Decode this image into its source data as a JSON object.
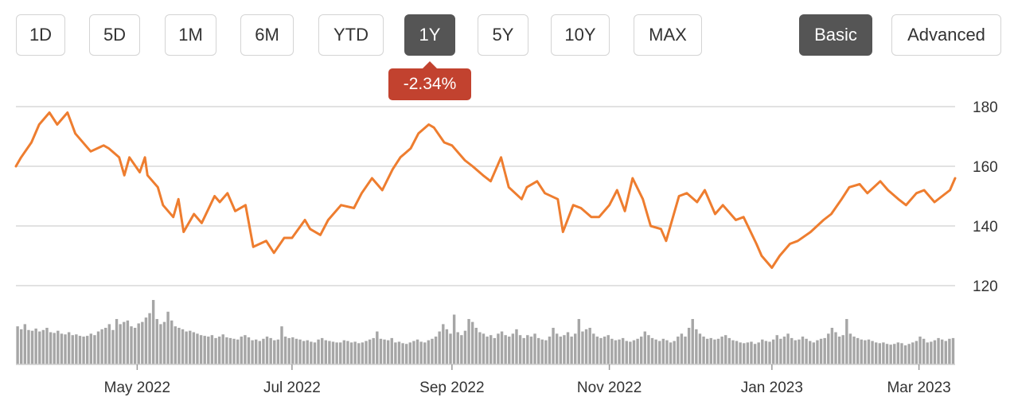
{
  "range_buttons": [
    {
      "label": "1D",
      "active": false
    },
    {
      "label": "5D",
      "active": false
    },
    {
      "label": "1M",
      "active": false
    },
    {
      "label": "6M",
      "active": false
    },
    {
      "label": "YTD",
      "active": false
    },
    {
      "label": "1Y",
      "active": true
    },
    {
      "label": "5Y",
      "active": false
    },
    {
      "label": "10Y",
      "active": false
    },
    {
      "label": "MAX",
      "active": false
    }
  ],
  "mode_buttons": [
    {
      "label": "Basic",
      "active": true
    },
    {
      "label": "Advanced",
      "active": false
    }
  ],
  "change_badge": "-2.34%",
  "colors": {
    "line": "#ee7d2f",
    "volume": "#a6a6a6",
    "grid": "#d9d9d9",
    "badge": "#c2422f",
    "active_button": "#555555"
  },
  "chart_data": {
    "type": "line",
    "y_ticks": [
      "180",
      "160",
      "140",
      "120"
    ],
    "ylim": [
      120,
      180
    ],
    "x_tick_labels": [
      "May 2022",
      "Jul 2022",
      "Sep 2022",
      "Nov 2022",
      "Jan 2023",
      "Mar 2023"
    ],
    "x_tick_dates": [
      "2022-05-02",
      "2022-07-01",
      "2022-09-01",
      "2022-11-01",
      "2023-01-03",
      "2023-03-01"
    ],
    "date_range": [
      "2022-03-16",
      "2023-03-15"
    ],
    "grid": "horizontal",
    "series": [
      {
        "kind": "price",
        "points": [
          [
            "2022-03-16",
            160
          ],
          [
            "2022-03-18",
            163
          ],
          [
            "2022-03-22",
            168
          ],
          [
            "2022-03-25",
            174
          ],
          [
            "2022-03-29",
            178
          ],
          [
            "2022-04-01",
            174
          ],
          [
            "2022-04-05",
            178
          ],
          [
            "2022-04-08",
            171
          ],
          [
            "2022-04-12",
            167
          ],
          [
            "2022-04-14",
            165
          ],
          [
            "2022-04-19",
            167
          ],
          [
            "2022-04-21",
            166
          ],
          [
            "2022-04-25",
            163
          ],
          [
            "2022-04-27",
            157
          ],
          [
            "2022-04-29",
            163
          ],
          [
            "2022-05-03",
            158
          ],
          [
            "2022-05-05",
            163
          ],
          [
            "2022-05-06",
            157
          ],
          [
            "2022-05-10",
            153
          ],
          [
            "2022-05-12",
            147
          ],
          [
            "2022-05-16",
            143
          ],
          [
            "2022-05-18",
            149
          ],
          [
            "2022-05-20",
            138
          ],
          [
            "2022-05-24",
            144
          ],
          [
            "2022-05-27",
            141
          ],
          [
            "2022-06-01",
            150
          ],
          [
            "2022-06-03",
            148
          ],
          [
            "2022-06-06",
            151
          ],
          [
            "2022-06-09",
            145
          ],
          [
            "2022-06-13",
            147
          ],
          [
            "2022-06-16",
            133
          ],
          [
            "2022-06-21",
            135
          ],
          [
            "2022-06-24",
            131
          ],
          [
            "2022-06-28",
            136
          ],
          [
            "2022-07-01",
            136
          ],
          [
            "2022-07-06",
            142
          ],
          [
            "2022-07-08",
            139
          ],
          [
            "2022-07-12",
            137
          ],
          [
            "2022-07-15",
            142
          ],
          [
            "2022-07-20",
            147
          ],
          [
            "2022-07-25",
            146
          ],
          [
            "2022-07-28",
            151
          ],
          [
            "2022-08-01",
            156
          ],
          [
            "2022-08-05",
            152
          ],
          [
            "2022-08-09",
            159
          ],
          [
            "2022-08-12",
            163
          ],
          [
            "2022-08-16",
            166
          ],
          [
            "2022-08-19",
            171
          ],
          [
            "2022-08-23",
            174
          ],
          [
            "2022-08-25",
            173
          ],
          [
            "2022-08-29",
            168
          ],
          [
            "2022-09-01",
            167
          ],
          [
            "2022-09-06",
            162
          ],
          [
            "2022-09-09",
            160
          ],
          [
            "2022-09-13",
            157
          ],
          [
            "2022-09-16",
            155
          ],
          [
            "2022-09-20",
            163
          ],
          [
            "2022-09-23",
            153
          ],
          [
            "2022-09-28",
            149
          ],
          [
            "2022-09-30",
            153
          ],
          [
            "2022-10-04",
            155
          ],
          [
            "2022-10-07",
            151
          ],
          [
            "2022-10-12",
            149
          ],
          [
            "2022-10-14",
            138
          ],
          [
            "2022-10-18",
            147
          ],
          [
            "2022-10-21",
            146
          ],
          [
            "2022-10-25",
            143
          ],
          [
            "2022-10-28",
            143
          ],
          [
            "2022-11-01",
            147
          ],
          [
            "2022-11-04",
            152
          ],
          [
            "2022-11-07",
            145
          ],
          [
            "2022-11-10",
            156
          ],
          [
            "2022-11-14",
            149
          ],
          [
            "2022-11-17",
            140
          ],
          [
            "2022-11-21",
            139
          ],
          [
            "2022-11-23",
            135
          ],
          [
            "2022-11-28",
            150
          ],
          [
            "2022-12-01",
            151
          ],
          [
            "2022-12-05",
            148
          ],
          [
            "2022-12-08",
            152
          ],
          [
            "2022-12-12",
            144
          ],
          [
            "2022-12-15",
            147
          ],
          [
            "2022-12-20",
            142
          ],
          [
            "2022-12-23",
            143
          ],
          [
            "2022-12-28",
            134
          ],
          [
            "2022-12-30",
            130
          ],
          [
            "2023-01-03",
            126
          ],
          [
            "2023-01-06",
            130
          ],
          [
            "2023-01-10",
            134
          ],
          [
            "2023-01-13",
            135
          ],
          [
            "2023-01-18",
            138
          ],
          [
            "2023-01-23",
            142
          ],
          [
            "2023-01-26",
            144
          ],
          [
            "2023-01-30",
            149
          ],
          [
            "2023-02-02",
            153
          ],
          [
            "2023-02-06",
            154
          ],
          [
            "2023-02-09",
            151
          ],
          [
            "2023-02-14",
            155
          ],
          [
            "2023-02-17",
            152
          ],
          [
            "2023-02-21",
            149
          ],
          [
            "2023-02-24",
            147
          ],
          [
            "2023-02-28",
            151
          ],
          [
            "2023-03-03",
            152
          ],
          [
            "2023-03-07",
            148
          ],
          [
            "2023-03-10",
            150
          ],
          [
            "2023-03-13",
            152
          ],
          [
            "2023-03-15",
            156
          ]
        ]
      },
      {
        "kind": "volume",
        "relative_heights": [
          0.52,
          0.48,
          0.55,
          0.47,
          0.46,
          0.49,
          0.45,
          0.47,
          0.5,
          0.44,
          0.43,
          0.46,
          0.42,
          0.41,
          0.44,
          0.4,
          0.41,
          0.39,
          0.38,
          0.39,
          0.42,
          0.4,
          0.45,
          0.48,
          0.5,
          0.55,
          0.47,
          0.62,
          0.55,
          0.58,
          0.6,
          0.52,
          0.5,
          0.56,
          0.58,
          0.64,
          0.7,
          0.88,
          0.62,
          0.55,
          0.58,
          0.72,
          0.6,
          0.52,
          0.5,
          0.48,
          0.45,
          0.46,
          0.44,
          0.42,
          0.4,
          0.39,
          0.38,
          0.4,
          0.36,
          0.38,
          0.41,
          0.37,
          0.36,
          0.35,
          0.34,
          0.38,
          0.4,
          0.37,
          0.33,
          0.34,
          0.32,
          0.35,
          0.38,
          0.36,
          0.33,
          0.34,
          0.52,
          0.38,
          0.36,
          0.37,
          0.35,
          0.34,
          0.32,
          0.33,
          0.31,
          0.3,
          0.34,
          0.36,
          0.33,
          0.32,
          0.31,
          0.3,
          0.3,
          0.33,
          0.32,
          0.3,
          0.31,
          0.29,
          0.3,
          0.32,
          0.34,
          0.36,
          0.45,
          0.35,
          0.34,
          0.33,
          0.36,
          0.3,
          0.31,
          0.29,
          0.28,
          0.3,
          0.32,
          0.34,
          0.31,
          0.3,
          0.33,
          0.35,
          0.38,
          0.45,
          0.55,
          0.48,
          0.42,
          0.68,
          0.44,
          0.4,
          0.46,
          0.62,
          0.58,
          0.5,
          0.44,
          0.42,
          0.38,
          0.4,
          0.36,
          0.42,
          0.45,
          0.4,
          0.38,
          0.42,
          0.48,
          0.4,
          0.36,
          0.4,
          0.38,
          0.42,
          0.36,
          0.34,
          0.33,
          0.38,
          0.5,
          0.42,
          0.38,
          0.4,
          0.44,
          0.38,
          0.42,
          0.62,
          0.45,
          0.48,
          0.5,
          0.42,
          0.38,
          0.36,
          0.38,
          0.4,
          0.35,
          0.33,
          0.34,
          0.36,
          0.32,
          0.31,
          0.33,
          0.35,
          0.38,
          0.45,
          0.4,
          0.36,
          0.34,
          0.32,
          0.35,
          0.33,
          0.3,
          0.32,
          0.38,
          0.42,
          0.38,
          0.5,
          0.62,
          0.48,
          0.42,
          0.38,
          0.35,
          0.36,
          0.34,
          0.35,
          0.38,
          0.4,
          0.36,
          0.33,
          0.32,
          0.3,
          0.29,
          0.3,
          0.31,
          0.28,
          0.3,
          0.34,
          0.32,
          0.31,
          0.34,
          0.4,
          0.35,
          0.38,
          0.42,
          0.36,
          0.33,
          0.34,
          0.38,
          0.35,
          0.32,
          0.3,
          0.33,
          0.35,
          0.36,
          0.42,
          0.5,
          0.44,
          0.38,
          0.4,
          0.62,
          0.42,
          0.38,
          0.36,
          0.34,
          0.33,
          0.34,
          0.32,
          0.3,
          0.29,
          0.3,
          0.28,
          0.27,
          0.28,
          0.3,
          0.29,
          0.26,
          0.28,
          0.3,
          0.32,
          0.38,
          0.35,
          0.3,
          0.31,
          0.33,
          0.36,
          0.34,
          0.32,
          0.35,
          0.36
        ]
      }
    ]
  }
}
